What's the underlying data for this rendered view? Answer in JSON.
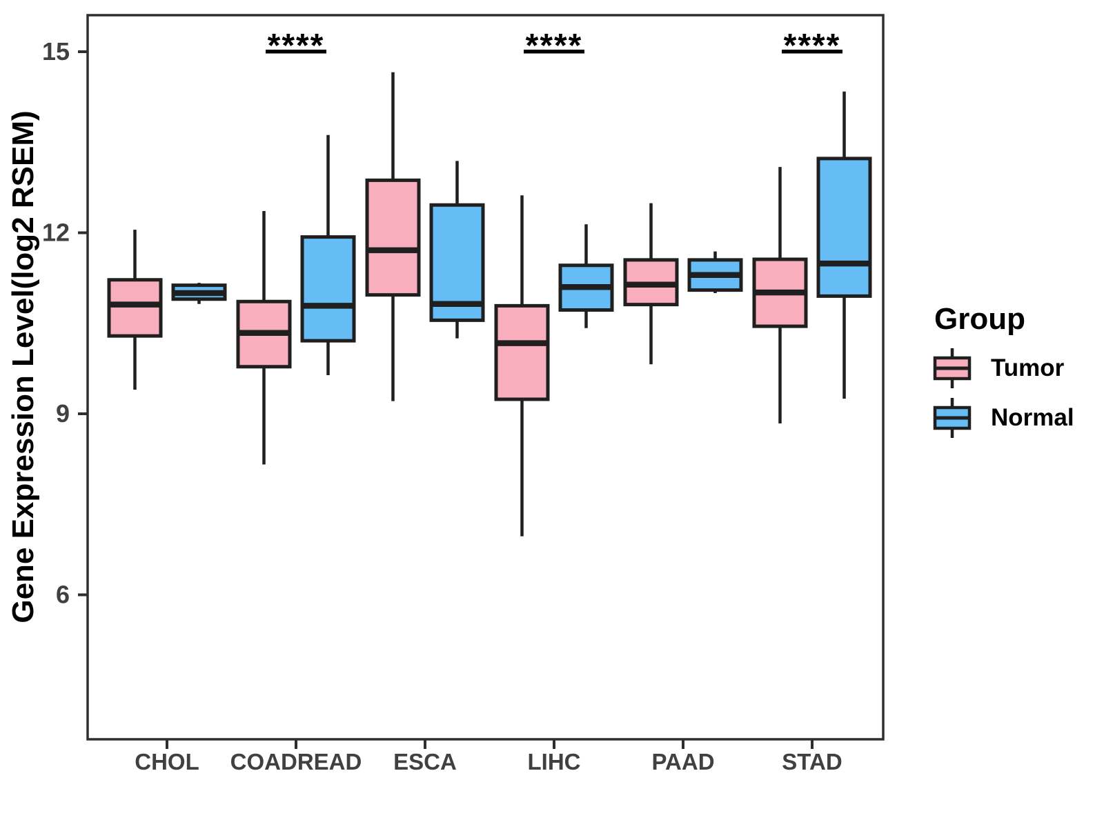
{
  "chart_data": {
    "type": "boxplot",
    "title": "",
    "xlabel": "",
    "ylabel": "Gene Expression Level(log2 RSEM)",
    "y_ticks": [
      6,
      9,
      12,
      15
    ],
    "ylim": [
      3.6,
      15.6
    ],
    "grid": false,
    "panel_border": true,
    "categories": [
      "CHOL",
      "COADREAD",
      "ESCA",
      "LIHC",
      "PAAD",
      "STAD"
    ],
    "groups": [
      {
        "name": "Tumor",
        "fill": "#F8AEBD"
      },
      {
        "name": "Normal",
        "fill": "#66BCF4"
      }
    ],
    "series": [
      {
        "group": "Tumor",
        "boxes": [
          {
            "category": "CHOL",
            "whisker_low": 9.4,
            "q1": 10.29,
            "median": 10.81,
            "q3": 11.22,
            "whisker_high": 12.05
          },
          {
            "category": "COADREAD",
            "whisker_low": 8.16,
            "q1": 9.78,
            "median": 10.34,
            "q3": 10.86,
            "whisker_high": 12.36
          },
          {
            "category": "ESCA",
            "whisker_low": 9.21,
            "q1": 10.97,
            "median": 11.71,
            "q3": 12.87,
            "whisker_high": 14.66
          },
          {
            "category": "LIHC",
            "whisker_low": 6.97,
            "q1": 9.24,
            "median": 10.17,
            "q3": 10.79,
            "whisker_high": 12.62
          },
          {
            "category": "PAAD",
            "whisker_low": 9.82,
            "q1": 10.81,
            "median": 11.14,
            "q3": 11.55,
            "whisker_high": 12.49
          },
          {
            "category": "STAD",
            "whisker_low": 8.84,
            "q1": 10.45,
            "median": 11.01,
            "q3": 11.56,
            "whisker_high": 13.09
          }
        ]
      },
      {
        "group": "Normal",
        "boxes": [
          {
            "category": "CHOL",
            "whisker_low": 10.82,
            "q1": 10.9,
            "median": 11.0,
            "q3": 11.13,
            "whisker_high": 11.17
          },
          {
            "category": "COADREAD",
            "whisker_low": 9.64,
            "q1": 10.21,
            "median": 10.79,
            "q3": 11.93,
            "whisker_high": 13.62
          },
          {
            "category": "ESCA",
            "whisker_low": 10.25,
            "q1": 10.55,
            "median": 10.82,
            "q3": 12.46,
            "whisker_high": 13.19
          },
          {
            "category": "LIHC",
            "whisker_low": 10.42,
            "q1": 10.72,
            "median": 11.1,
            "q3": 11.46,
            "whisker_high": 12.14
          },
          {
            "category": "PAAD",
            "whisker_low": 11.0,
            "q1": 11.05,
            "median": 11.3,
            "q3": 11.55,
            "whisker_high": 11.69
          },
          {
            "category": "STAD",
            "whisker_low": 9.25,
            "q1": 10.95,
            "median": 11.49,
            "q3": 13.23,
            "whisker_high": 14.34
          }
        ]
      }
    ],
    "significance": [
      {
        "category": "COADREAD",
        "label": "****",
        "y": 15
      },
      {
        "category": "LIHC",
        "label": "****",
        "y": 15
      },
      {
        "category": "STAD",
        "label": "****",
        "y": 15
      }
    ],
    "legend": {
      "title": "Group",
      "position": "right",
      "entries": [
        "Tumor",
        "Normal"
      ]
    }
  },
  "colors": {
    "background": "#FFFFFF",
    "box_stroke": "#1F1F1F",
    "axis": "#2E2E2E",
    "tick_label": "#404040",
    "tumor_fill": "#F8AEBD",
    "normal_fill": "#66BCF4"
  }
}
